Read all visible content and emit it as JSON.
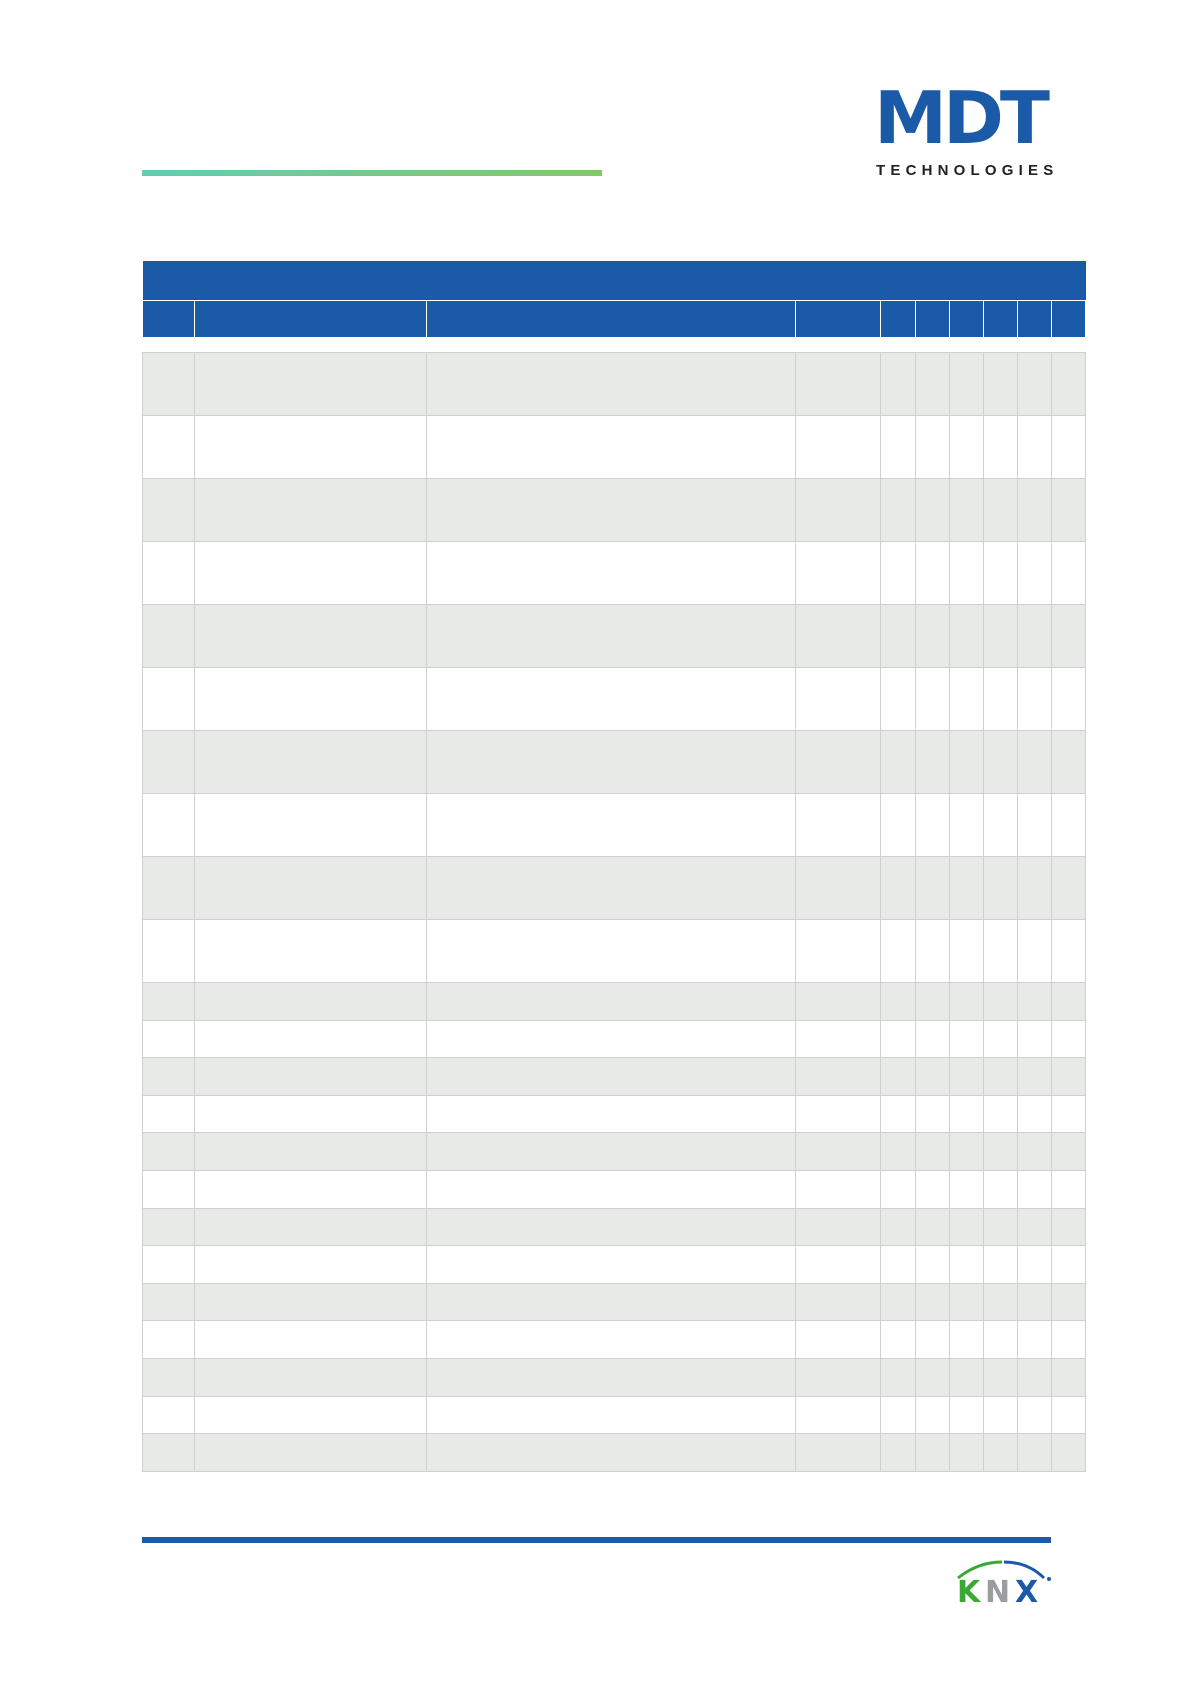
{
  "header": {
    "logo_brand": "MDT",
    "logo_subtitle": "TECHNOLOGIES",
    "brand_color": "#1b5aa6",
    "accent_gradient": [
      "#66cbb4",
      "#7ecb63"
    ]
  },
  "table": {
    "header_color": "#1b5aa6",
    "stripe_color": "#e8eae7",
    "title": ""
  },
  "footer": {
    "logo": "KNX",
    "logo_colors": {
      "k": "#3aa835",
      "n": "#9a9c9e",
      "x": "#1b5aa6"
    }
  }
}
